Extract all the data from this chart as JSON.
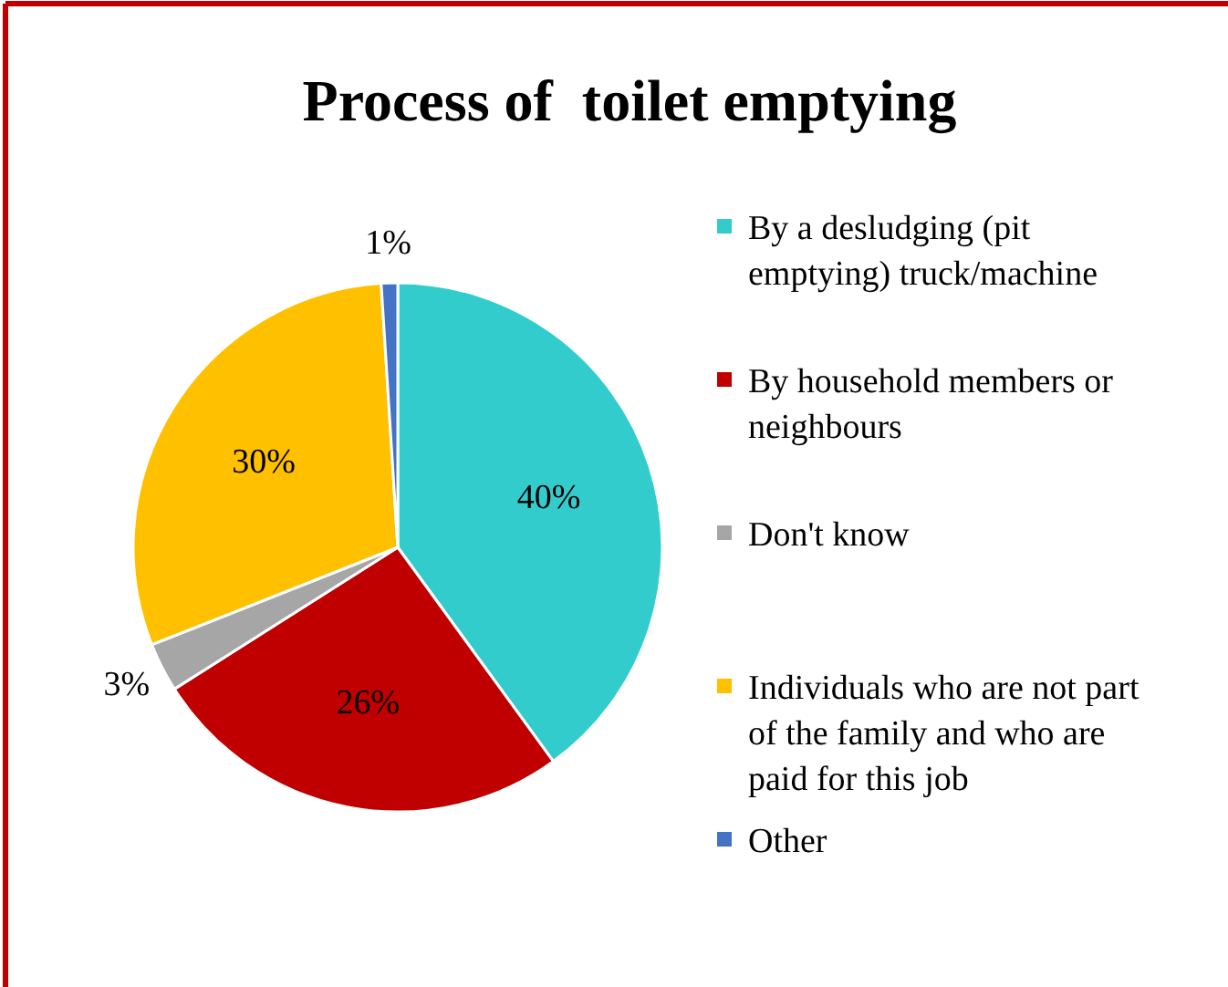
{
  "chart_data": {
    "type": "pie",
    "title": "Process of  toilet emptying",
    "categories": [
      "By a desludging (pit emptying) truck/machine",
      "By household members or neighbours",
      "Don't know",
      "Individuals who are not part of the family and who are paid for this job",
      "Other"
    ],
    "values": [
      40,
      26,
      3,
      30,
      1
    ],
    "colors": [
      "#33cccc",
      "#c00000",
      "#a6a6a6",
      "#ffc000",
      "#4472c4"
    ],
    "value_labels": [
      "40%",
      "26%",
      "3%",
      "30%",
      "1%"
    ],
    "legend": "right"
  }
}
